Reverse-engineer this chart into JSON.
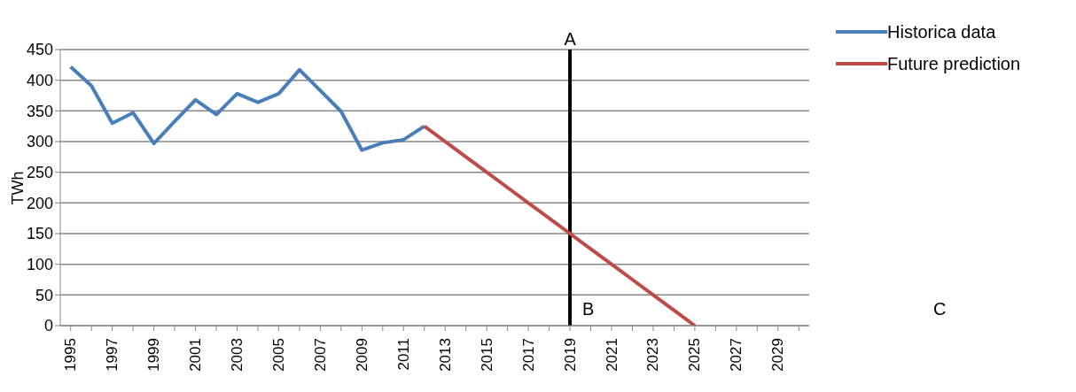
{
  "chart_data": {
    "type": "line",
    "ylabel": "TWh",
    "categories": [
      "1995",
      null,
      "1997",
      null,
      "1999",
      null,
      "2001",
      null,
      "2003",
      null,
      "2005",
      null,
      "2007",
      null,
      "2009",
      null,
      "2011",
      null,
      "2013",
      null,
      "2015",
      null,
      "2017",
      null,
      "2019",
      null,
      "2021",
      null,
      "2023",
      null,
      "2025",
      null,
      "2027",
      null,
      "2029",
      null
    ],
    "series": [
      {
        "name": "Historica data",
        "color": "#4a7ebb",
        "values": [
          422,
          391,
          330,
          347,
          297,
          333,
          368,
          344,
          378,
          364,
          378,
          417,
          383,
          349,
          286,
          298,
          303,
          325,
          null,
          null,
          null,
          null,
          null,
          null,
          null,
          null,
          null,
          null,
          null,
          null,
          null,
          null,
          null,
          null,
          null,
          null
        ]
      },
      {
        "name": "Future prediction",
        "color": "#be4b48",
        "values": [
          null,
          null,
          null,
          null,
          null,
          null,
          null,
          null,
          null,
          null,
          null,
          null,
          null,
          null,
          null,
          null,
          null,
          325,
          300,
          275,
          250,
          225,
          200,
          175,
          150,
          125,
          100,
          75,
          50,
          25,
          0,
          null,
          null,
          null,
          null,
          null
        ]
      }
    ],
    "ref_lines": [
      {
        "axis": "x",
        "value": "2019",
        "label": "A",
        "color": "#000000"
      }
    ],
    "annotations": [
      "B",
      "C"
    ],
    "ylim": [
      0,
      450
    ],
    "yticks": [
      0,
      50,
      100,
      150,
      200,
      250,
      300,
      350,
      400,
      450
    ],
    "grid": "y",
    "legend": "top right",
    "marker": "none",
    "line_style": "solid"
  }
}
